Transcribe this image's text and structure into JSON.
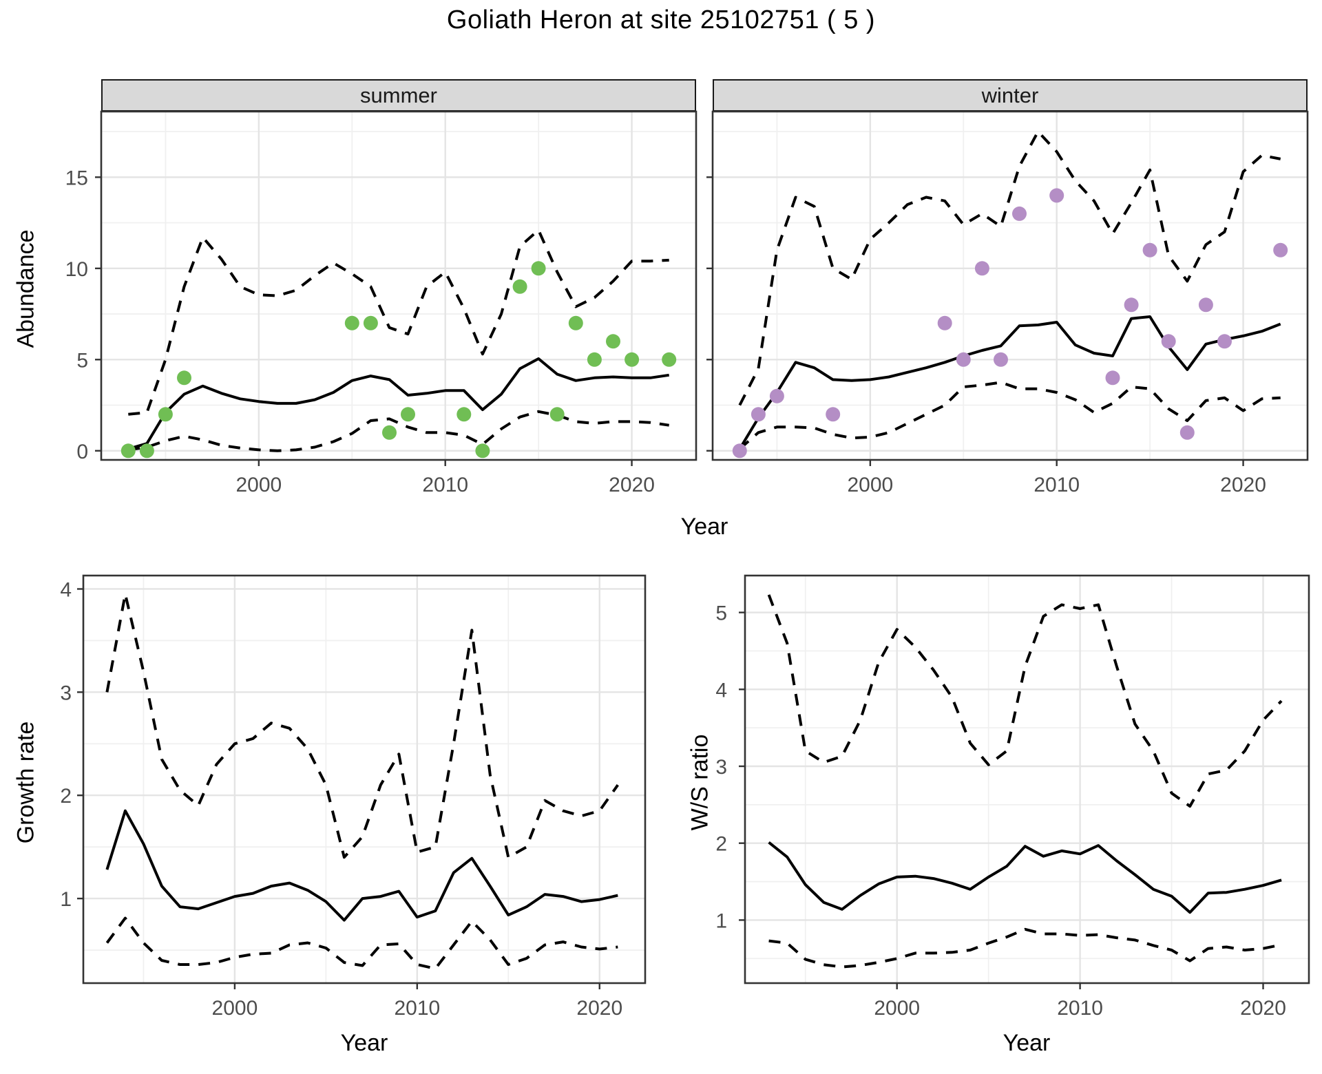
{
  "title": "Goliath Heron at site 25102751 ( 5 )",
  "colors": {
    "summer_point": "#70BE54",
    "winter_point": "#B48EC5",
    "line": "#000000",
    "grid_major": "#E4E4E4",
    "grid_minor": "#F0F0F0",
    "strip_fill": "#D9D9D9",
    "panel_border": "#333333",
    "axis_text": "#4D4D4D"
  },
  "chart_data": [
    {
      "id": "abundance_summer",
      "type": "line",
      "facet_label": "summer",
      "ylabel": "Abundance",
      "xlabel": "Year",
      "xlim": [
        1991.55,
        2023.45
      ],
      "ylim": [
        -0.5,
        18.6
      ],
      "x_ticks": [
        2000,
        2010,
        2020
      ],
      "x_minor": [
        1995,
        2005,
        2015
      ],
      "y_ticks": [
        0,
        5,
        10,
        15
      ],
      "y_minor": [
        2.5,
        7.5,
        12.5,
        17.5
      ],
      "grid": true,
      "legend": "none",
      "years": [
        1993,
        1994,
        1995,
        1996,
        1997,
        1998,
        1999,
        2000,
        2001,
        2002,
        2003,
        2004,
        2005,
        2006,
        2007,
        2008,
        2009,
        2010,
        2011,
        2012,
        2013,
        2014,
        2015,
        2016,
        2017,
        2018,
        2019,
        2020,
        2021,
        2022
      ],
      "series": [
        {
          "name": "mean",
          "style": "solid",
          "values": [
            0.1,
            0.4,
            2.1,
            3.1,
            3.55,
            3.15,
            2.85,
            2.7,
            2.6,
            2.6,
            2.8,
            3.2,
            3.85,
            4.1,
            3.9,
            3.05,
            3.15,
            3.3,
            3.3,
            2.25,
            3.1,
            4.5,
            5.05,
            4.2,
            3.85,
            4.0,
            4.05,
            4.0,
            4.0,
            4.15
          ]
        },
        {
          "name": "upper_ci",
          "style": "dashed",
          "values": [
            2.0,
            2.1,
            5.0,
            9.0,
            11.7,
            10.5,
            9.0,
            8.55,
            8.5,
            8.8,
            9.6,
            10.3,
            9.7,
            9.0,
            6.75,
            6.4,
            9.0,
            9.8,
            7.8,
            5.3,
            7.5,
            11.2,
            12.1,
            9.8,
            7.9,
            8.4,
            9.3,
            10.4,
            10.4,
            10.45
          ]
        },
        {
          "name": "lower_ci",
          "style": "dashed",
          "values": [
            0.05,
            0.2,
            0.55,
            0.8,
            0.6,
            0.3,
            0.15,
            0.05,
            0.0,
            0.05,
            0.2,
            0.5,
            0.95,
            1.65,
            1.75,
            1.3,
            1.0,
            1.0,
            0.85,
            0.35,
            1.2,
            1.85,
            2.15,
            1.95,
            1.6,
            1.5,
            1.6,
            1.6,
            1.55,
            1.4
          ]
        }
      ],
      "points": {
        "x": [
          1993,
          1994,
          1995,
          1996,
          2005,
          2006,
          2007,
          2008,
          2011,
          2012,
          2014,
          2015,
          2016,
          2017,
          2018,
          2019,
          2020,
          2022
        ],
        "y": [
          0,
          0,
          2,
          4,
          7,
          7,
          1,
          2,
          2,
          0,
          9,
          10,
          2,
          7,
          5,
          6,
          5,
          5
        ],
        "color_key": "summer_point"
      }
    },
    {
      "id": "abundance_winter",
      "type": "line",
      "facet_label": "winter",
      "ylabel": "Abundance",
      "xlabel": "Year",
      "xlim": [
        1991.55,
        2023.45
      ],
      "ylim": [
        -0.5,
        18.6
      ],
      "x_ticks": [
        2000,
        2010,
        2020
      ],
      "x_minor": [
        1995,
        2005,
        2015
      ],
      "y_ticks": [
        0,
        5,
        10,
        15
      ],
      "y_minor": [
        2.5,
        7.5,
        12.5,
        17.5
      ],
      "grid": true,
      "legend": "none",
      "years": [
        1993,
        1994,
        1995,
        1996,
        1997,
        1998,
        1999,
        2000,
        2001,
        2002,
        2003,
        2004,
        2005,
        2006,
        2007,
        2008,
        2009,
        2010,
        2011,
        2012,
        2013,
        2014,
        2015,
        2016,
        2017,
        2018,
        2019,
        2020,
        2021,
        2022
      ],
      "series": [
        {
          "name": "mean",
          "style": "solid",
          "values": [
            0.1,
            1.8,
            3.2,
            4.85,
            4.55,
            3.9,
            3.85,
            3.9,
            4.05,
            4.3,
            4.55,
            4.85,
            5.2,
            5.5,
            5.75,
            6.85,
            6.9,
            7.05,
            5.8,
            5.35,
            5.2,
            7.25,
            7.35,
            5.7,
            4.45,
            5.85,
            6.1,
            6.3,
            6.55,
            6.95
          ]
        },
        {
          "name": "upper_ci",
          "style": "dashed",
          "values": [
            2.5,
            4.5,
            11.0,
            13.9,
            13.4,
            10.0,
            9.4,
            11.6,
            12.5,
            13.5,
            13.9,
            13.7,
            12.4,
            13.0,
            12.3,
            15.6,
            17.5,
            16.4,
            14.8,
            13.7,
            11.9,
            13.6,
            15.4,
            10.7,
            9.3,
            11.3,
            12.0,
            15.3,
            16.2,
            16.0
          ]
        },
        {
          "name": "lower_ci",
          "style": "dashed",
          "values": [
            0.1,
            1.0,
            1.3,
            1.3,
            1.25,
            0.9,
            0.7,
            0.75,
            1.0,
            1.5,
            2.0,
            2.5,
            3.5,
            3.6,
            3.75,
            3.4,
            3.4,
            3.2,
            2.8,
            2.1,
            2.6,
            3.5,
            3.4,
            2.3,
            1.65,
            2.75,
            2.9,
            2.2,
            2.85,
            2.9
          ]
        }
      ],
      "points": {
        "x": [
          1993,
          1994,
          1995,
          1998,
          2004,
          2005,
          2006,
          2007,
          2008,
          2010,
          2013,
          2014,
          2015,
          2016,
          2017,
          2018,
          2019,
          2022
        ],
        "y": [
          0,
          2,
          3,
          2,
          7,
          5,
          10,
          5,
          13,
          14,
          4,
          8,
          11,
          6,
          1,
          8,
          6,
          11
        ],
        "color_key": "winter_point"
      }
    },
    {
      "id": "growth_rate",
      "type": "line",
      "facet_label": "",
      "ylabel": "Growth rate",
      "xlabel": "Year",
      "xlim": [
        1991.7,
        2022.5
      ],
      "ylim": [
        0.18,
        4.13
      ],
      "x_ticks": [
        2000,
        2010,
        2020
      ],
      "x_minor": [
        1995,
        2005,
        2015
      ],
      "y_ticks": [
        1,
        2,
        3,
        4
      ],
      "y_minor": [
        0.5,
        1.5,
        2.5,
        3.5
      ],
      "grid": true,
      "legend": "none",
      "years": [
        1993,
        1994,
        1995,
        1996,
        1997,
        1998,
        1999,
        2000,
        2001,
        2002,
        2003,
        2004,
        2005,
        2006,
        2007,
        2008,
        2009,
        2010,
        2011,
        2012,
        2013,
        2014,
        2015,
        2016,
        2017,
        2018,
        2019,
        2020,
        2021
      ],
      "series": [
        {
          "name": "mean",
          "style": "solid",
          "values": [
            1.28,
            1.85,
            1.53,
            1.12,
            0.92,
            0.9,
            0.96,
            1.02,
            1.05,
            1.12,
            1.15,
            1.08,
            0.97,
            0.79,
            1.0,
            1.02,
            1.07,
            0.82,
            0.88,
            1.25,
            1.39,
            1.12,
            0.84,
            0.92,
            1.04,
            1.02,
            0.97,
            0.99,
            1.03
          ]
        },
        {
          "name": "upper_ci",
          "style": "dashed",
          "values": [
            3.0,
            3.95,
            3.2,
            2.35,
            2.05,
            1.9,
            2.3,
            2.5,
            2.55,
            2.7,
            2.65,
            2.45,
            2.1,
            1.4,
            1.6,
            2.1,
            2.4,
            1.45,
            1.5,
            2.5,
            3.6,
            2.2,
            1.4,
            1.5,
            1.95,
            1.85,
            1.8,
            1.85,
            2.1
          ]
        },
        {
          "name": "lower_ci",
          "style": "dashed",
          "values": [
            0.57,
            0.81,
            0.57,
            0.4,
            0.36,
            0.36,
            0.38,
            0.43,
            0.46,
            0.47,
            0.55,
            0.57,
            0.52,
            0.38,
            0.35,
            0.55,
            0.56,
            0.36,
            0.32,
            0.55,
            0.78,
            0.6,
            0.36,
            0.42,
            0.55,
            0.58,
            0.53,
            0.51,
            0.53
          ]
        }
      ],
      "points": null
    },
    {
      "id": "ws_ratio",
      "type": "line",
      "facet_label": "",
      "ylabel": "W/S ratio",
      "xlabel": "Year",
      "xlim": [
        1991.7,
        2022.5
      ],
      "ylim": [
        0.18,
        5.48
      ],
      "x_ticks": [
        2000,
        2010,
        2020
      ],
      "x_minor": [
        1995,
        2005,
        2015
      ],
      "y_ticks": [
        1,
        2,
        3,
        4,
        5
      ],
      "y_minor": [
        0.5,
        1.5,
        2.5,
        3.5,
        4.5
      ],
      "grid": true,
      "legend": "none",
      "years": [
        1993,
        1994,
        1995,
        1996,
        1997,
        1998,
        1999,
        2000,
        2001,
        2002,
        2003,
        2004,
        2005,
        2006,
        2007,
        2008,
        2009,
        2010,
        2011,
        2012,
        2013,
        2014,
        2015,
        2016,
        2017,
        2018,
        2019,
        2020,
        2021
      ],
      "series": [
        {
          "name": "mean",
          "style": "solid",
          "values": [
            2.01,
            1.82,
            1.46,
            1.23,
            1.14,
            1.32,
            1.47,
            1.56,
            1.57,
            1.54,
            1.48,
            1.4,
            1.56,
            1.7,
            1.96,
            1.83,
            1.9,
            1.86,
            1.97,
            1.77,
            1.59,
            1.4,
            1.31,
            1.1,
            1.35,
            1.36,
            1.4,
            1.45,
            1.52
          ]
        },
        {
          "name": "upper_ci",
          "style": "dashed",
          "values": [
            5.23,
            4.6,
            3.2,
            3.05,
            3.13,
            3.6,
            4.35,
            4.78,
            4.55,
            4.25,
            3.9,
            3.3,
            3.02,
            3.2,
            4.3,
            4.95,
            5.1,
            5.05,
            5.1,
            4.3,
            3.55,
            3.2,
            2.65,
            2.48,
            2.9,
            2.95,
            3.2,
            3.6,
            3.85
          ]
        },
        {
          "name": "lower_ci",
          "style": "dashed",
          "values": [
            0.73,
            0.7,
            0.49,
            0.42,
            0.39,
            0.41,
            0.45,
            0.5,
            0.57,
            0.57,
            0.58,
            0.61,
            0.7,
            0.78,
            0.88,
            0.82,
            0.82,
            0.8,
            0.81,
            0.77,
            0.74,
            0.67,
            0.61,
            0.47,
            0.63,
            0.65,
            0.61,
            0.63,
            0.68
          ]
        }
      ],
      "points": null
    }
  ]
}
